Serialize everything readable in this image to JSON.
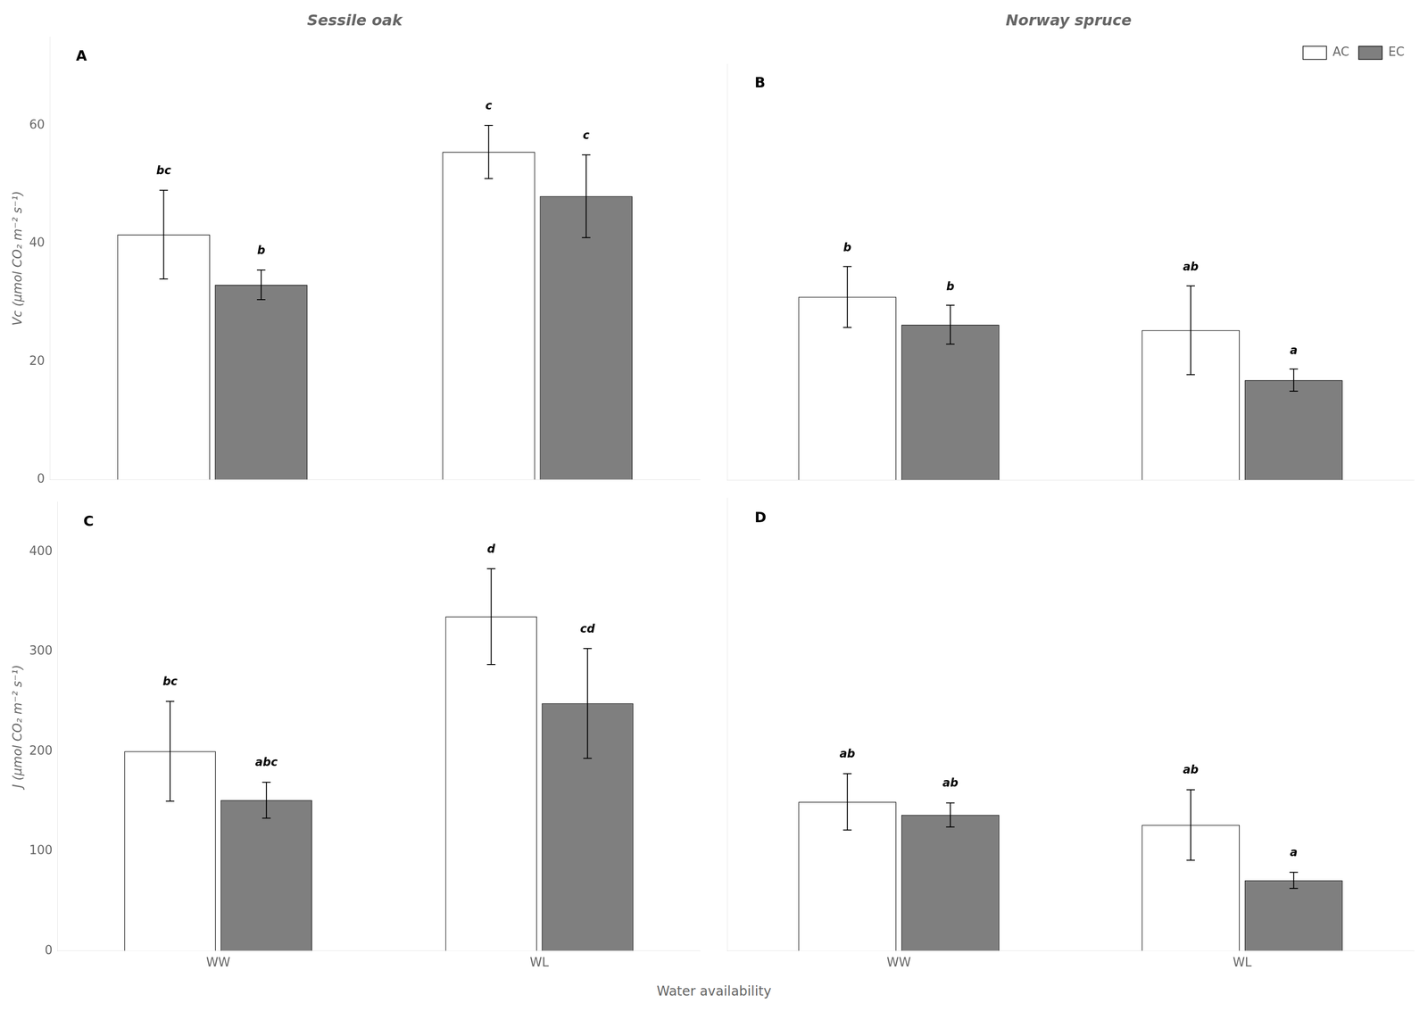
{
  "xlabel": "Water availability",
  "chart_data": [
    {
      "type": "bar",
      "title": "Sessile oak",
      "panel_label": "A",
      "ylabel": "Vc (μmol CO₂ m⁻² s⁻¹)",
      "categories": [
        "WW",
        "WL"
      ],
      "series": [
        {
          "name": "AC",
          "color": "#ffffff",
          "values": [
            41.5,
            55.5
          ],
          "errors": [
            7.5,
            4.5
          ],
          "letters": [
            "bc",
            "c"
          ]
        },
        {
          "name": "EC",
          "color": "#7f7f7f",
          "values": [
            33.0,
            48.0
          ],
          "errors": [
            2.5,
            7.0
          ],
          "letters": [
            "b",
            "c"
          ]
        }
      ],
      "ylim": [
        0,
        75
      ],
      "yticks": [
        0,
        20,
        40,
        60
      ],
      "grid": false,
      "tick_labels": "y"
    },
    {
      "type": "bar",
      "title": "Norway spruce",
      "panel_label": "B",
      "categories": [
        "WW",
        "WL"
      ],
      "series": [
        {
          "name": "AC",
          "color": "#ffffff",
          "values": [
            33.0,
            27.0
          ],
          "errors": [
            5.5,
            8.0
          ],
          "letters": [
            "b",
            "ab"
          ]
        },
        {
          "name": "EC",
          "color": "#7f7f7f",
          "values": [
            28.0,
            18.0
          ],
          "errors": [
            3.5,
            2.0
          ],
          "letters": [
            "b",
            "a"
          ]
        }
      ],
      "ylim": [
        0,
        75
      ],
      "yticks": [
        0,
        20,
        40,
        60
      ],
      "grid": false,
      "tick_labels": false,
      "legend": "upper right"
    },
    {
      "type": "bar",
      "panel_label": "C",
      "ylabel": "J (μmol CO₂ m⁻² s⁻¹)",
      "categories": [
        "WW",
        "WL"
      ],
      "series": [
        {
          "name": "AC",
          "color": "#ffffff",
          "values": [
            200,
            335
          ],
          "errors": [
            50,
            48
          ],
          "letters": [
            "bc",
            "d"
          ]
        },
        {
          "name": "EC",
          "color": "#7f7f7f",
          "values": [
            151,
            248
          ],
          "errors": [
            18,
            55
          ],
          "letters": [
            "abc",
            "cd"
          ]
        }
      ],
      "ylim": [
        0,
        450
      ],
      "yticks": [
        0,
        100,
        200,
        300,
        400
      ],
      "grid": false
    },
    {
      "type": "bar",
      "panel_label": "D",
      "categories": [
        "WW",
        "WL"
      ],
      "series": [
        {
          "name": "AC",
          "color": "#ffffff",
          "values": [
            148,
            125
          ],
          "errors": [
            28,
            35
          ],
          "letters": [
            "ab",
            "ab"
          ]
        },
        {
          "name": "EC",
          "color": "#7f7f7f",
          "values": [
            135,
            70
          ],
          "errors": [
            12,
            8
          ],
          "letters": [
            "ab",
            "a"
          ]
        }
      ],
      "ylim": [
        0,
        450
      ],
      "yticks": [
        0,
        100,
        200,
        300,
        400
      ],
      "grid": false,
      "tick_labels": "x"
    }
  ]
}
